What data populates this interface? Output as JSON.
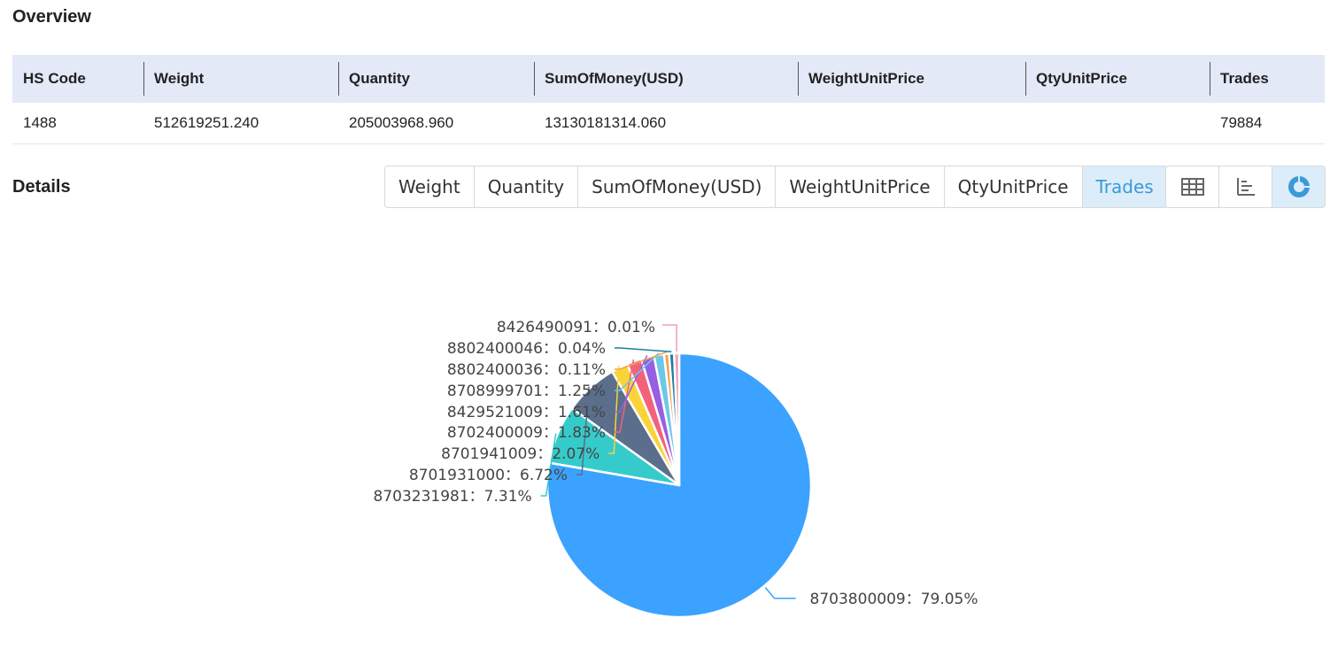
{
  "overview": {
    "title": "Overview",
    "columns": [
      "HS Code",
      "Weight",
      "Quantity",
      "SumOfMoney(USD)",
      "WeightUnitPrice",
      "QtyUnitPrice",
      "Trades"
    ],
    "row": [
      "1488",
      "512619251.240",
      "205003968.960",
      "13130181314.060",
      "",
      "",
      "79884"
    ]
  },
  "details": {
    "title": "Details",
    "tabs": [
      "Weight",
      "Quantity",
      "SumOfMoney(USD)",
      "WeightUnitPrice",
      "QtyUnitPrice",
      "Trades"
    ],
    "active_tab": "Trades",
    "view_buttons": [
      {
        "name": "table-view",
        "icon": "table-icon",
        "active": false
      },
      {
        "name": "bar-view",
        "icon": "bar-chart-icon",
        "active": false
      },
      {
        "name": "pie-view",
        "icon": "pie-chart-icon",
        "active": true
      }
    ],
    "accent_color": "#3a9ad9"
  },
  "chart_data": {
    "type": "pie",
    "slices": [
      {
        "label": "8703800009",
        "value": 79.05,
        "text": "8703800009：79.05%",
        "color": "#3ba2ff"
      },
      {
        "label": "8703231981",
        "value": 7.31,
        "text": "8703231981：7.31%",
        "color": "#36cbcb"
      },
      {
        "label": "8701931000",
        "value": 6.72,
        "text": "8701931000：6.72%",
        "color": "#5b6e8c"
      },
      {
        "label": "8701941009",
        "value": 2.07,
        "text": "8701941009：2.07%",
        "color": "#fad337"
      },
      {
        "label": "8702400009",
        "value": 1.83,
        "text": "8702400009：1.83%",
        "color": "#f2637b"
      },
      {
        "label": "8429521009",
        "value": 1.61,
        "text": "8429521009：1.61%",
        "color": "#975fe4"
      },
      {
        "label": "8708999701",
        "value": 1.25,
        "text": "8708999701：1.25%",
        "color": "#6cc8e8"
      },
      {
        "label": "8802400036",
        "value": 0.11,
        "text": "8802400036：0.11%",
        "color": "#f5a14e"
      },
      {
        "label": "8802400046",
        "value": 0.04,
        "text": "8802400046：0.04%",
        "color": "#1b7fa0"
      },
      {
        "label": "8426490091",
        "value": 0.01,
        "text": "8426490091：0.01%",
        "color": "#f69cb8"
      }
    ]
  }
}
